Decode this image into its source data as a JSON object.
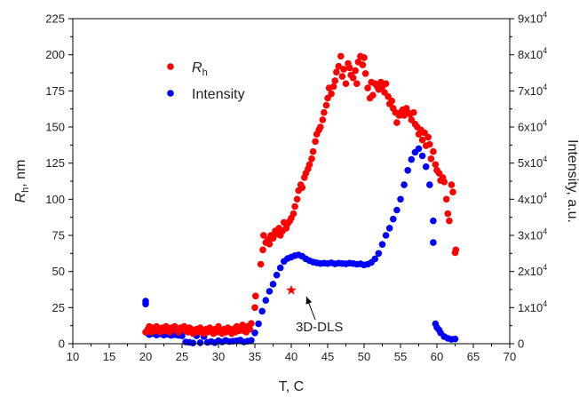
{
  "chart_data": {
    "type": "scatter",
    "xlabel": "T, C",
    "ylabel_left": {
      "main": "R",
      "sub": "h",
      "rest": ", nm"
    },
    "ylabel_right": "Intensity, a.u.",
    "xlim": [
      10,
      70
    ],
    "ylim_left": [
      0,
      225
    ],
    "ylim_right": [
      0,
      90000
    ],
    "x_ticks": [
      "10",
      "15",
      "20",
      "25",
      "30",
      "35",
      "40",
      "45",
      "50",
      "55",
      "60",
      "65",
      "70"
    ],
    "left_ticks": [
      "0",
      "25",
      "50",
      "75",
      "100",
      "125",
      "150",
      "175",
      "200",
      "225"
    ],
    "right_ticks": [
      {
        "mant": "0",
        "exp": ""
      },
      {
        "mant": "1x10",
        "exp": "4"
      },
      {
        "mant": "2x10",
        "exp": "4"
      },
      {
        "mant": "3x10",
        "exp": "4"
      },
      {
        "mant": "4x10",
        "exp": "4"
      },
      {
        "mant": "5x10",
        "exp": "4"
      },
      {
        "mant": "6x10",
        "exp": "4"
      },
      {
        "mant": "7x10",
        "exp": "4"
      },
      {
        "mant": "8x10",
        "exp": "4"
      },
      {
        "mant": "9x10",
        "exp": "4"
      }
    ],
    "legend": {
      "rh": {
        "main": "R",
        "sub": "h"
      },
      "intensity": "Intensity",
      "placement": "top-left"
    },
    "annotation": {
      "text": "3D-DLS",
      "x": 40,
      "y": 37,
      "marker": "star",
      "color": "#ff0000"
    },
    "colors": {
      "rh": "#ff0000",
      "intensity": "#0000ff"
    },
    "series": [
      {
        "name": "Rh",
        "axis": "left",
        "points": [
          [
            20,
            8
          ],
          [
            20.3,
            10
          ],
          [
            20.5,
            12
          ],
          [
            20.8,
            8
          ],
          [
            21,
            11
          ],
          [
            21.3,
            9
          ],
          [
            21.5,
            12
          ],
          [
            21.8,
            10
          ],
          [
            22,
            8
          ],
          [
            22.3,
            11
          ],
          [
            22.5,
            9
          ],
          [
            22.8,
            12
          ],
          [
            23,
            10
          ],
          [
            23.3,
            8
          ],
          [
            23.5,
            11
          ],
          [
            23.8,
            10
          ],
          [
            24,
            12
          ],
          [
            24.3,
            9
          ],
          [
            24.5,
            8
          ],
          [
            24.8,
            11
          ],
          [
            25,
            10
          ],
          [
            25.3,
            12
          ],
          [
            25.5,
            9
          ],
          [
            25.8,
            8
          ],
          [
            26,
            11
          ],
          [
            26.3,
            10
          ],
          [
            26.5,
            7
          ],
          [
            26.8,
            9
          ],
          [
            27,
            10
          ],
          [
            27.3,
            8
          ],
          [
            27.5,
            11
          ],
          [
            27.8,
            9
          ],
          [
            28,
            7
          ],
          [
            28.3,
            10
          ],
          [
            28.5,
            8
          ],
          [
            28.8,
            11
          ],
          [
            29,
            9
          ],
          [
            29.3,
            7
          ],
          [
            29.5,
            10
          ],
          [
            29.8,
            8
          ],
          [
            30,
            12
          ],
          [
            30.3,
            9
          ],
          [
            30.5,
            7
          ],
          [
            30.8,
            10
          ],
          [
            31,
            8
          ],
          [
            31.3,
            11
          ],
          [
            31.5,
            9
          ],
          [
            31.8,
            7
          ],
          [
            32,
            10
          ],
          [
            32.3,
            8
          ],
          [
            32.5,
            12
          ],
          [
            32.8,
            9
          ],
          [
            33,
            11
          ],
          [
            33.3,
            13
          ],
          [
            33.5,
            9
          ],
          [
            33.8,
            8
          ],
          [
            34,
            12
          ],
          [
            34.3,
            10
          ],
          [
            34.5,
            14
          ],
          [
            35,
            25
          ],
          [
            35.1,
            33
          ],
          [
            35.8,
            55
          ],
          [
            36.1,
            65
          ],
          [
            36.2,
            75
          ],
          [
            36.5,
            70
          ],
          [
            36.8,
            72
          ],
          [
            37,
            69
          ],
          [
            37.2,
            75
          ],
          [
            37.5,
            73
          ],
          [
            37.8,
            78
          ],
          [
            38,
            76
          ],
          [
            38.3,
            80
          ],
          [
            38.5,
            75
          ],
          [
            38.8,
            78
          ],
          [
            39,
            84
          ],
          [
            39.3,
            80
          ],
          [
            39.5,
            83
          ],
          [
            39.8,
            85
          ],
          [
            40,
            87
          ],
          [
            40.3,
            90
          ],
          [
            40.5,
            95
          ],
          [
            40.8,
            100
          ],
          [
            41,
            106
          ],
          [
            41.3,
            110
          ],
          [
            41.5,
            108
          ],
          [
            41.8,
            115
          ],
          [
            42,
            118
          ],
          [
            42.3,
            121
          ],
          [
            42.5,
            124
          ],
          [
            42.8,
            128
          ],
          [
            43,
            133
          ],
          [
            43.3,
            140
          ],
          [
            43.5,
            145
          ],
          [
            43.8,
            148
          ],
          [
            44,
            150
          ],
          [
            44.3,
            155
          ],
          [
            44.5,
            160
          ],
          [
            44.8,
            165
          ],
          [
            45,
            170
          ],
          [
            45.2,
            177
          ],
          [
            45.5,
            173
          ],
          [
            45.8,
            178
          ],
          [
            46,
            182
          ],
          [
            46.2,
            188
          ],
          [
            46.5,
            192
          ],
          [
            46.8,
            199
          ],
          [
            47,
            185
          ],
          [
            47.2,
            190
          ],
          [
            47.5,
            180
          ],
          [
            47.8,
            194
          ],
          [
            48,
            191
          ],
          [
            48.2,
            186
          ],
          [
            48.5,
            184
          ],
          [
            48.8,
            189
          ],
          [
            49,
            180
          ],
          [
            49.2,
            195
          ],
          [
            49.5,
            199
          ],
          [
            49.8,
            193
          ],
          [
            50,
            198
          ],
          [
            50.2,
            187
          ],
          [
            50.5,
            177
          ],
          [
            50.8,
            170
          ],
          [
            51,
            181
          ],
          [
            51.2,
            172
          ],
          [
            51.5,
            180
          ],
          [
            51.8,
            178
          ],
          [
            52,
            176
          ],
          [
            52.3,
            181
          ],
          [
            52.5,
            178
          ],
          [
            52.8,
            174
          ],
          [
            53,
            180
          ],
          [
            53.3,
            171
          ],
          [
            53.5,
            166
          ],
          [
            53.8,
            168
          ],
          [
            54,
            163
          ],
          [
            54.3,
            160
          ],
          [
            54.5,
            153
          ],
          [
            54.8,
            158
          ],
          [
            55,
            160
          ],
          [
            55.3,
            162
          ],
          [
            55.5,
            158
          ],
          [
            55.8,
            163
          ],
          [
            56,
            160
          ],
          [
            56.3,
            159
          ],
          [
            56.5,
            155
          ],
          [
            56.8,
            160
          ],
          [
            57,
            152
          ],
          [
            57.3,
            150
          ],
          [
            57.5,
            145
          ],
          [
            57.8,
            148
          ],
          [
            58,
            141
          ],
          [
            58.3,
            146
          ],
          [
            58.5,
            137
          ],
          [
            58.8,
            143
          ],
          [
            59,
            138
          ],
          [
            59.2,
            128
          ],
          [
            59.5,
            133
          ],
          [
            59.8,
            124
          ],
          [
            60,
            120
          ],
          [
            60.3,
            118
          ],
          [
            60.5,
            113
          ],
          [
            60.8,
            115
          ],
          [
            61,
            112
          ],
          [
            61.3,
            100
          ],
          [
            61.5,
            90
          ],
          [
            61.7,
            85
          ],
          [
            62,
            110
          ],
          [
            62.2,
            105
          ],
          [
            62.5,
            63
          ],
          [
            62.6,
            65
          ]
        ]
      },
      {
        "name": "Intensity",
        "axis": "right",
        "points": [
          [
            20,
            11000
          ],
          [
            20,
            11800
          ],
          [
            20.2,
            3000
          ],
          [
            20.5,
            2500
          ],
          [
            21,
            2800
          ],
          [
            21.5,
            2400
          ],
          [
            22,
            2700
          ],
          [
            22.5,
            2400
          ],
          [
            23,
            2600
          ],
          [
            23.5,
            2300
          ],
          [
            24,
            2500
          ],
          [
            24.5,
            2300
          ],
          [
            25,
            2200
          ],
          [
            25.5,
            500
          ],
          [
            26,
            400
          ],
          [
            26.5,
            200
          ],
          [
            27,
            2200
          ],
          [
            27.5,
            300
          ],
          [
            28,
            2000
          ],
          [
            28.5,
            400
          ],
          [
            29,
            600
          ],
          [
            29.5,
            300
          ],
          [
            30,
            800
          ],
          [
            30.5,
            500
          ],
          [
            31,
            900
          ],
          [
            31.5,
            600
          ],
          [
            32,
            700
          ],
          [
            32.5,
            800
          ],
          [
            33,
            1000
          ],
          [
            33.5,
            500
          ],
          [
            34,
            700
          ],
          [
            34.5,
            900
          ],
          [
            35,
            3000
          ],
          [
            35.5,
            5500
          ],
          [
            36,
            9000
          ],
          [
            36.5,
            12000
          ],
          [
            37,
            14500
          ],
          [
            37.5,
            16500
          ],
          [
            38,
            19000
          ],
          [
            38.5,
            21000
          ],
          [
            39,
            22800
          ],
          [
            39.5,
            23600
          ],
          [
            40,
            24000
          ],
          [
            40.5,
            24400
          ],
          [
            41,
            24600
          ],
          [
            41.5,
            24200
          ],
          [
            42,
            23500
          ],
          [
            42.5,
            23000
          ],
          [
            43,
            22600
          ],
          [
            43.5,
            22400
          ],
          [
            44,
            22200
          ],
          [
            44.5,
            22300
          ],
          [
            45,
            22200
          ],
          [
            45.5,
            22400
          ],
          [
            46,
            22100
          ],
          [
            46.5,
            22300
          ],
          [
            47,
            22200
          ],
          [
            47.5,
            22100
          ],
          [
            48,
            22300
          ],
          [
            48.5,
            22200
          ],
          [
            49,
            22000
          ],
          [
            49.5,
            22100
          ],
          [
            50,
            21800
          ],
          [
            50.5,
            22000
          ],
          [
            51,
            22500
          ],
          [
            51.5,
            23500
          ],
          [
            52,
            25000
          ],
          [
            52.5,
            27500
          ],
          [
            53,
            30000
          ],
          [
            53.5,
            32000
          ],
          [
            54,
            34500
          ],
          [
            54.5,
            37000
          ],
          [
            55,
            40000
          ],
          [
            55.5,
            44000
          ],
          [
            56,
            48000
          ],
          [
            56.5,
            51000
          ],
          [
            57,
            53000
          ],
          [
            57.5,
            54000
          ],
          [
            58,
            52000
          ],
          [
            58.5,
            49000
          ],
          [
            59,
            44000
          ],
          [
            59.5,
            34000
          ],
          [
            59.5,
            28000
          ],
          [
            59.8,
            5500
          ],
          [
            60,
            4500
          ],
          [
            60.3,
            3800
          ],
          [
            60.5,
            3000
          ],
          [
            61,
            2000
          ],
          [
            61.5,
            1500
          ],
          [
            62,
            1200
          ],
          [
            62.5,
            1300
          ]
        ]
      }
    ]
  }
}
